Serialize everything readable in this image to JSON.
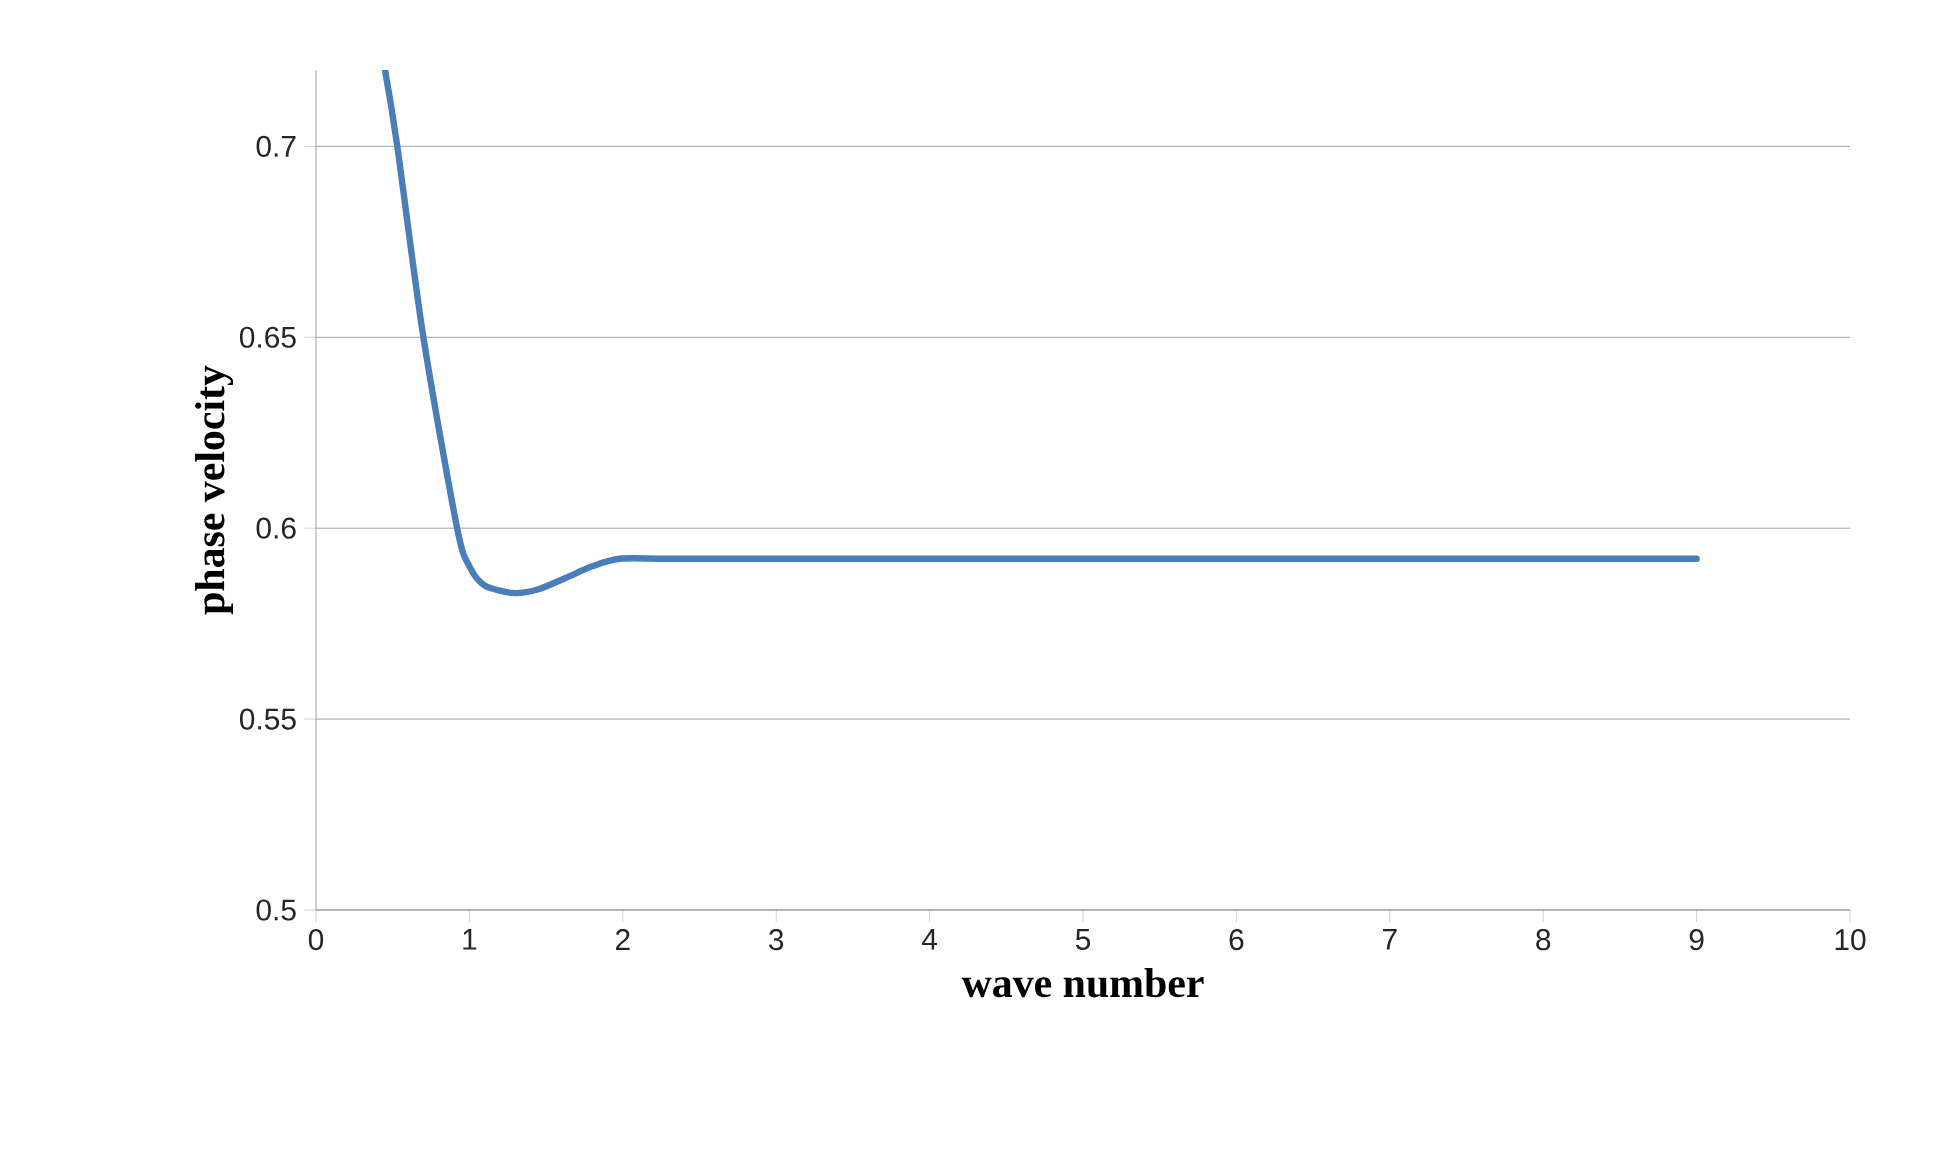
{
  "chart_data": {
    "type": "line",
    "xlabel": "wave number",
    "ylabel": "phase velocity",
    "xlim": [
      0,
      10
    ],
    "xticks": [
      0,
      1,
      2,
      3,
      4,
      5,
      6,
      7,
      8,
      9,
      10
    ],
    "ylim": [
      0.5,
      0.72
    ],
    "yticks": [
      0.5,
      0.55,
      0.6,
      0.65,
      0.7
    ],
    "grid": "y",
    "line_style": "solid",
    "marker": "none",
    "series": [
      {
        "color": "#4a7ebb",
        "x": [
          0.45,
          0.53,
          0.7,
          0.92,
          1.0,
          1.1,
          1.29,
          1.45,
          1.63,
          1.8,
          1.98,
          2.3,
          3,
          4,
          5,
          6,
          7,
          8,
          9
        ],
        "values": [
          0.72,
          0.7,
          0.65,
          0.6,
          0.59,
          0.585,
          0.583,
          0.584,
          0.587,
          0.59,
          0.592,
          0.592,
          0.592,
          0.592,
          0.592,
          0.592,
          0.592,
          0.592,
          0.592
        ]
      }
    ]
  }
}
